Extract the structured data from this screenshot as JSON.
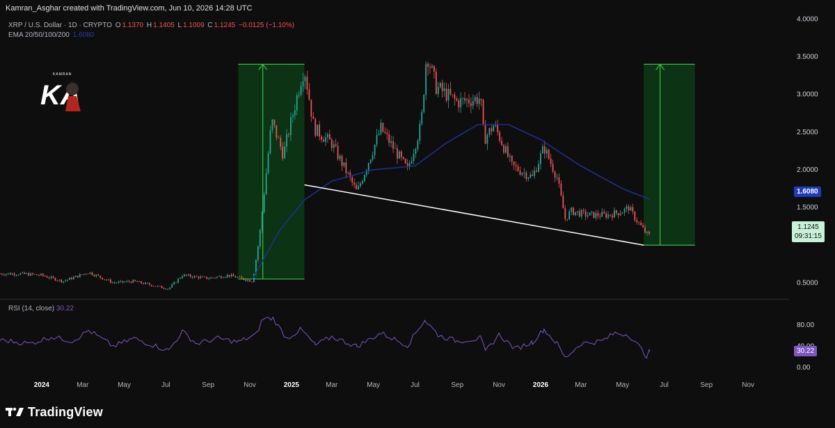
{
  "header": {
    "attribution": "Kamran_Asghar created with TradingView.com, Jun 10, 2026 14:28 UTC"
  },
  "legend": {
    "symbol": "XRP / U.S. Dollar · 1D · CRYPTO",
    "o_label": "O",
    "o_value": "1.1370",
    "h_label": "H",
    "h_value": "1.1405",
    "l_label": "L",
    "l_value": "1.1009",
    "c_label": "C",
    "c_value": "1.1245",
    "change": "−0.0125 (−1.10%)",
    "ema_label": "EMA 20/50/100/200",
    "ema_value": "1.6080"
  },
  "logo": {
    "text": "KA",
    "caption": "KAMRAN"
  },
  "rsi_legend": {
    "label": "RSI (14, close)",
    "value": "30.22"
  },
  "price_tags": {
    "ema": "1.6080",
    "last": "1.1245",
    "countdown": "09:31:15",
    "rsi": "30.22"
  },
  "footer": {
    "brand": "TradingView"
  },
  "colors": {
    "background": "#0e0e0e",
    "up": "#26a69a",
    "down": "#ef5350",
    "ema": "#1f2f8f",
    "rsi": "#7e57c2",
    "box_fill": "#0c3a14",
    "box_stroke": "#36c24a",
    "trendline": "#ffffff"
  },
  "chart_data": [
    {
      "type": "candlestick",
      "title": "XRP / U.S. Dollar · 1D · CRYPTO",
      "ylim": [
        0.3,
        4.05
      ],
      "y_ticks": [
        "4.0000",
        "3.5000",
        "3.0000",
        "2.5000",
        "2.0000",
        "1.5000",
        "0.5000"
      ],
      "x_ticks": [
        "2024",
        "Mar",
        "May",
        "Jul",
        "Sep",
        "Nov",
        "2025",
        "Mar",
        "May",
        "Jul",
        "Sep",
        "Nov",
        "2026",
        "Mar",
        "May",
        "Jul",
        "Sep",
        "Nov"
      ],
      "x_range": [
        "2023-11-01",
        "2026-12-31"
      ],
      "series": [
        {
          "name": "XRP",
          "close_path": [
            [
              "2023-11-01",
              0.62
            ],
            [
              "2023-12-01",
              0.62
            ],
            [
              "2024-01-01",
              0.6
            ],
            [
              "2024-02-01",
              0.52
            ],
            [
              "2024-03-10",
              0.64
            ],
            [
              "2024-04-15",
              0.5
            ],
            [
              "2024-05-15",
              0.52
            ],
            [
              "2024-07-05",
              0.42
            ],
            [
              "2024-07-25",
              0.6
            ],
            [
              "2024-09-01",
              0.56
            ],
            [
              "2024-10-01",
              0.6
            ],
            [
              "2024-11-05",
              0.52
            ],
            [
              "2024-11-15",
              1.1
            ],
            [
              "2024-12-03",
              2.65
            ],
            [
              "2024-12-20",
              2.2
            ],
            [
              "2025-01-15",
              3.2
            ],
            [
              "2025-01-20",
              3.35
            ],
            [
              "2025-02-03",
              2.55
            ],
            [
              "2025-03-01",
              2.35
            ],
            [
              "2025-04-07",
              1.7
            ],
            [
              "2025-05-12",
              2.55
            ],
            [
              "2025-06-20",
              2.0
            ],
            [
              "2025-07-10",
              2.6
            ],
            [
              "2025-07-18",
              3.55
            ],
            [
              "2025-08-01",
              3.1
            ],
            [
              "2025-09-01",
              2.9
            ],
            [
              "2025-10-05",
              2.95
            ],
            [
              "2025-10-10",
              2.4
            ],
            [
              "2025-10-25",
              2.6
            ],
            [
              "2025-11-20",
              2.05
            ],
            [
              "2025-12-20",
              1.9
            ],
            [
              "2026-01-06",
              2.3
            ],
            [
              "2026-01-25",
              1.9
            ],
            [
              "2026-02-06",
              1.35
            ],
            [
              "2026-02-15",
              1.45
            ],
            [
              "2026-03-10",
              1.4
            ],
            [
              "2026-04-10",
              1.4
            ],
            [
              "2026-05-01",
              1.45
            ],
            [
              "2026-05-10",
              1.5
            ],
            [
              "2026-05-20",
              1.35
            ],
            [
              "2026-06-05",
              1.15
            ],
            [
              "2026-06-10",
              1.1245
            ]
          ]
        },
        {
          "name": "EMA 20/50/100/200",
          "path": [
            [
              "2024-11-05",
              0.55
            ],
            [
              "2024-12-15",
              1.2
            ],
            [
              "2025-01-20",
              1.6
            ],
            [
              "2025-03-01",
              1.85
            ],
            [
              "2025-05-01",
              2.0
            ],
            [
              "2025-07-01",
              2.05
            ],
            [
              "2025-08-15",
              2.35
            ],
            [
              "2025-10-01",
              2.6
            ],
            [
              "2025-11-15",
              2.6
            ],
            [
              "2026-01-01",
              2.4
            ],
            [
              "2026-03-01",
              2.05
            ],
            [
              "2026-05-01",
              1.75
            ],
            [
              "2026-06-10",
              1.608
            ]
          ]
        }
      ],
      "annotations": {
        "trendline": [
          [
            "2025-01-20",
            1.8
          ],
          [
            "2026-06-01",
            1.0
          ]
        ],
        "boxes": [
          {
            "start": "2024-10-15",
            "end": "2025-01-20",
            "bottom": 0.55,
            "top": 3.4,
            "arrow_at": "2024-11-20"
          },
          {
            "start": "2026-06-01",
            "end": "2026-08-15",
            "bottom": 1.0,
            "top": 3.4,
            "arrow_at": "2026-06-25"
          }
        ]
      }
    },
    {
      "type": "line",
      "title": "RSI (14, close)",
      "ylim": [
        0,
        100
      ],
      "y_ticks": [
        "80.00",
        "40.00",
        "0.00"
      ],
      "series": [
        {
          "name": "RSI (14, close)",
          "path": [
            [
              "2023-11-01",
              52
            ],
            [
              "2023-12-15",
              45
            ],
            [
              "2024-01-15",
              58
            ],
            [
              "2024-02-15",
              50
            ],
            [
              "2024-03-10",
              70
            ],
            [
              "2024-04-15",
              40
            ],
            [
              "2024-05-15",
              55
            ],
            [
              "2024-07-05",
              32
            ],
            [
              "2024-07-25",
              68
            ],
            [
              "2024-08-15",
              45
            ],
            [
              "2024-09-15",
              55
            ],
            [
              "2024-10-15",
              48
            ],
            [
              "2024-11-10",
              62
            ],
            [
              "2024-11-20",
              92
            ],
            [
              "2024-12-05",
              93
            ],
            [
              "2024-12-25",
              55
            ],
            [
              "2025-01-15",
              72
            ],
            [
              "2025-02-05",
              42
            ],
            [
              "2025-03-01",
              58
            ],
            [
              "2025-04-07",
              40
            ],
            [
              "2025-05-12",
              65
            ],
            [
              "2025-06-20",
              42
            ],
            [
              "2025-07-15",
              90
            ],
            [
              "2025-08-05",
              60
            ],
            [
              "2025-09-01",
              50
            ],
            [
              "2025-10-05",
              55
            ],
            [
              "2025-10-12",
              30
            ],
            [
              "2025-11-01",
              62
            ],
            [
              "2025-11-25",
              35
            ],
            [
              "2025-12-20",
              48
            ],
            [
              "2026-01-06",
              72
            ],
            [
              "2026-01-25",
              45
            ],
            [
              "2026-02-06",
              18
            ],
            [
              "2026-03-01",
              45
            ],
            [
              "2026-04-01",
              50
            ],
            [
              "2026-04-20",
              65
            ],
            [
              "2026-05-10",
              62
            ],
            [
              "2026-05-25",
              40
            ],
            [
              "2026-06-05",
              22
            ],
            [
              "2026-06-10",
              30.22
            ]
          ]
        }
      ]
    }
  ]
}
